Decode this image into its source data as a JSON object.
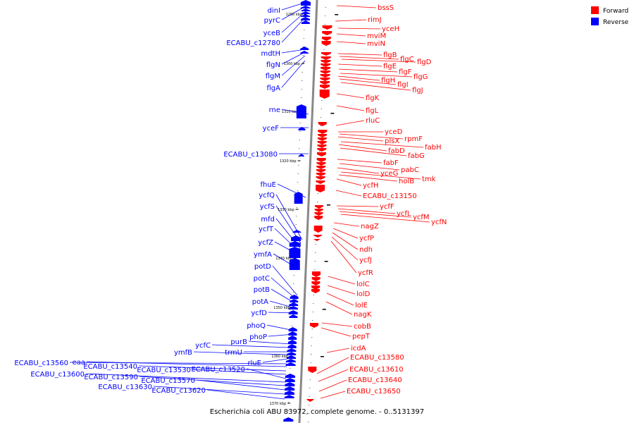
{
  "caption": "Escherichia coli ABU 83972, complete genome. - 0..5131397",
  "legend": [
    {
      "label": "Forward",
      "color": "#ff0000"
    },
    {
      "label": "Reverse",
      "color": "#0000ff"
    }
  ],
  "colors": {
    "forward": "#ff0000",
    "reverse": "#0000ff",
    "axis": "#888888"
  },
  "ticks": [
    "1290 kbp",
    "1300 kbp",
    "1310 kbp",
    "1320 kbp",
    "1330 kbp",
    "1340 kbp",
    "1350 kbp",
    "1360 kbp",
    "1370 kbp"
  ],
  "forward_genes": [
    "bssS",
    "rimJ",
    "yceH",
    "mviM",
    "mviN",
    "flgB",
    "flgC",
    "flgD",
    "flgE",
    "flgF",
    "flgG",
    "flgH",
    "flgI",
    "flgJ",
    "flgK",
    "flgL",
    "rluC",
    "yceD",
    "rpmF",
    "plsX",
    "fabH",
    "fabD",
    "fabG",
    "fabF",
    "pabC",
    "yceG",
    "tmk",
    "holB",
    "ycfH",
    "ECABU_c13150",
    "ycfF",
    "ycfL",
    "ycfM",
    "ycfN",
    "nagZ",
    "ycfP",
    "ndh",
    "ycfJ",
    "ycfR",
    "lolC",
    "lolD",
    "lolE",
    "nagK",
    "cobB",
    "pepT",
    "icdA",
    "ECABU_c13580",
    "ECABU_c13610",
    "ECABU_c13640",
    "ECABU_c13650"
  ],
  "reverse_genes": [
    "dinI",
    "pyrC",
    "yceB",
    "ECABU_c12780",
    "mdtH",
    "flgN",
    "flgM",
    "flgA",
    "rne",
    "yceF",
    "ECABU_c13080",
    "fhuE",
    "ycfQ",
    "ycfS",
    "mfd",
    "ycfT",
    "ycfZ",
    "ymfA",
    "potD",
    "potC",
    "potB",
    "potA",
    "ycfD",
    "phoQ",
    "phoP",
    "purB",
    "ycfC",
    "trmU",
    "ymfB",
    "rluE",
    "ECABU_c13560",
    "eaa",
    "ECABU_c13540",
    "ECABU_c13530",
    "ECABU_c13520",
    "ECABU_c13600",
    "ECABU_c13590",
    "ECABU_c13570",
    "ECABU_c13630",
    "ECABU_c13620"
  ]
}
